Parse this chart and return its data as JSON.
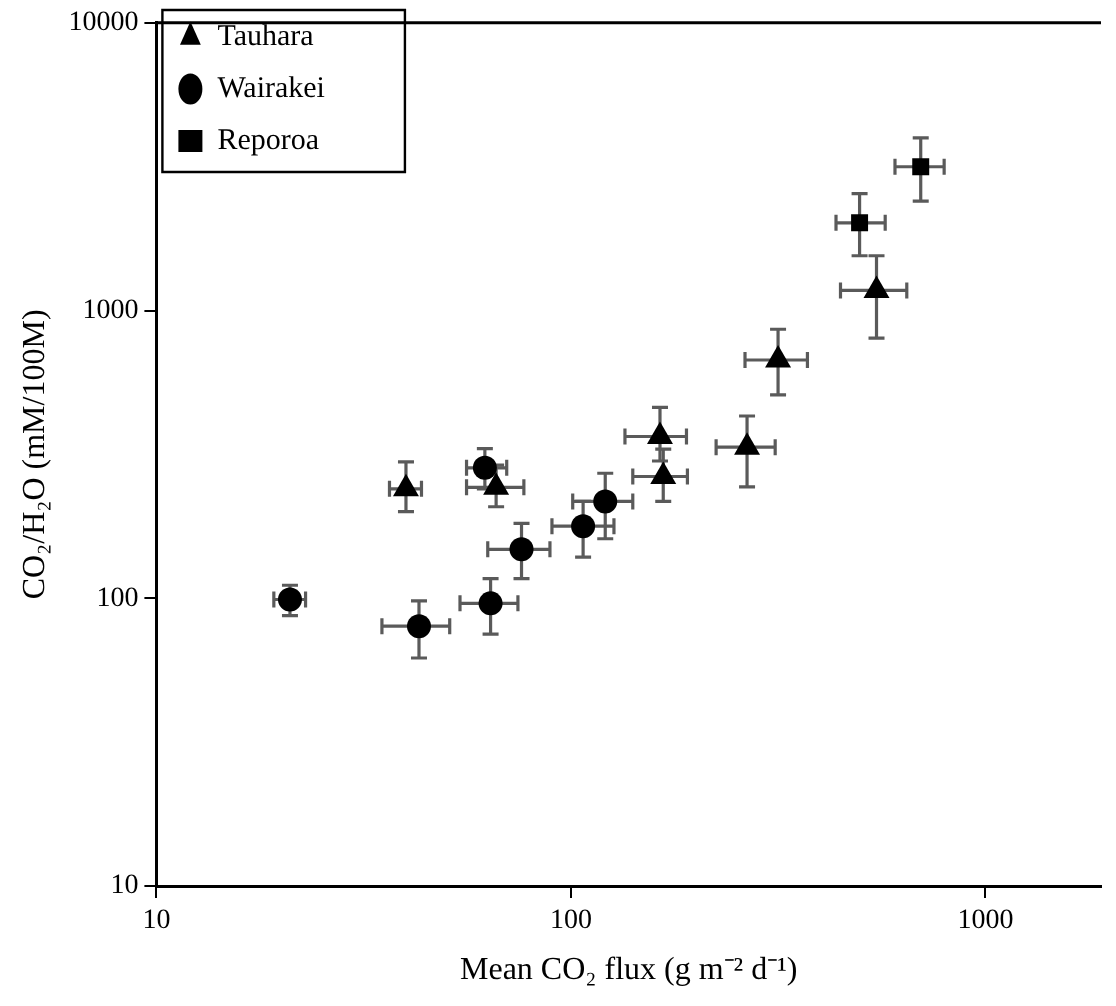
{
  "chart_data": {
    "type": "scatter",
    "xlabel": "Mean CO₂ flux (g m⁻² d⁻¹)",
    "ylabel": "CO₂/H₂O (mM/100M)",
    "log": "xy",
    "xlim": [
      10,
      1900
    ],
    "xticks": [
      10,
      100,
      1000
    ],
    "ylim": [
      10,
      10000
    ],
    "yticks": [
      10,
      100,
      1000,
      10000
    ],
    "grid": false,
    "legend": "top left",
    "series": [
      {
        "name": "Tauhara",
        "color": "#000000",
        "marker": "triangle",
        "x": [
          40,
          66,
          164,
          167,
          266,
          316,
          546
        ],
        "values": [
          240,
          243,
          365,
          265,
          335,
          673,
          1175
        ],
        "errors": [
          [
            200,
            298
          ],
          [
            208,
            290
          ],
          [
            300,
            461
          ],
          [
            217,
            330
          ],
          [
            244,
            430
          ],
          [
            509,
            861
          ],
          [
            802,
            1550
          ]
        ],
        "xerrors": [
          [
            36.5,
            43.6
          ],
          [
            56,
            77
          ],
          [
            135,
            190
          ],
          [
            141,
            191
          ],
          [
            224,
            311
          ],
          [
            263,
            372
          ],
          [
            447,
            646
          ]
        ]
      },
      {
        "name": "Wairakei",
        "color": "#000000",
        "marker": "circle",
        "x": [
          21,
          43,
          64,
          76,
          107,
          121,
          62
        ],
        "values": [
          99,
          80,
          96,
          148,
          178,
          217,
          284
        ],
        "errors": [
          [
            87,
            111
          ],
          [
            62,
            98
          ],
          [
            75,
            117
          ],
          [
            117,
            182
          ],
          [
            139,
            217
          ],
          [
            161,
            272
          ],
          [
            240,
            331
          ]
        ],
        "xerrors": [
          [
            19.2,
            22.9
          ],
          [
            35,
            51
          ],
          [
            54,
            74.5
          ],
          [
            63,
            89
          ],
          [
            90,
            127
          ],
          [
            101,
            141
          ],
          [
            56,
            70
          ]
        ]
      },
      {
        "name": "Reporoa",
        "color": "#000000",
        "marker": "square",
        "x": [
          497,
          698
        ],
        "values": [
          2018,
          3160
        ],
        "errors": [
          [
            1550,
            2550
          ],
          [
            2400,
            3980
          ]
        ],
        "xerrors": [
          [
            436,
            573
          ],
          [
            605,
            795
          ]
        ]
      }
    ]
  }
}
